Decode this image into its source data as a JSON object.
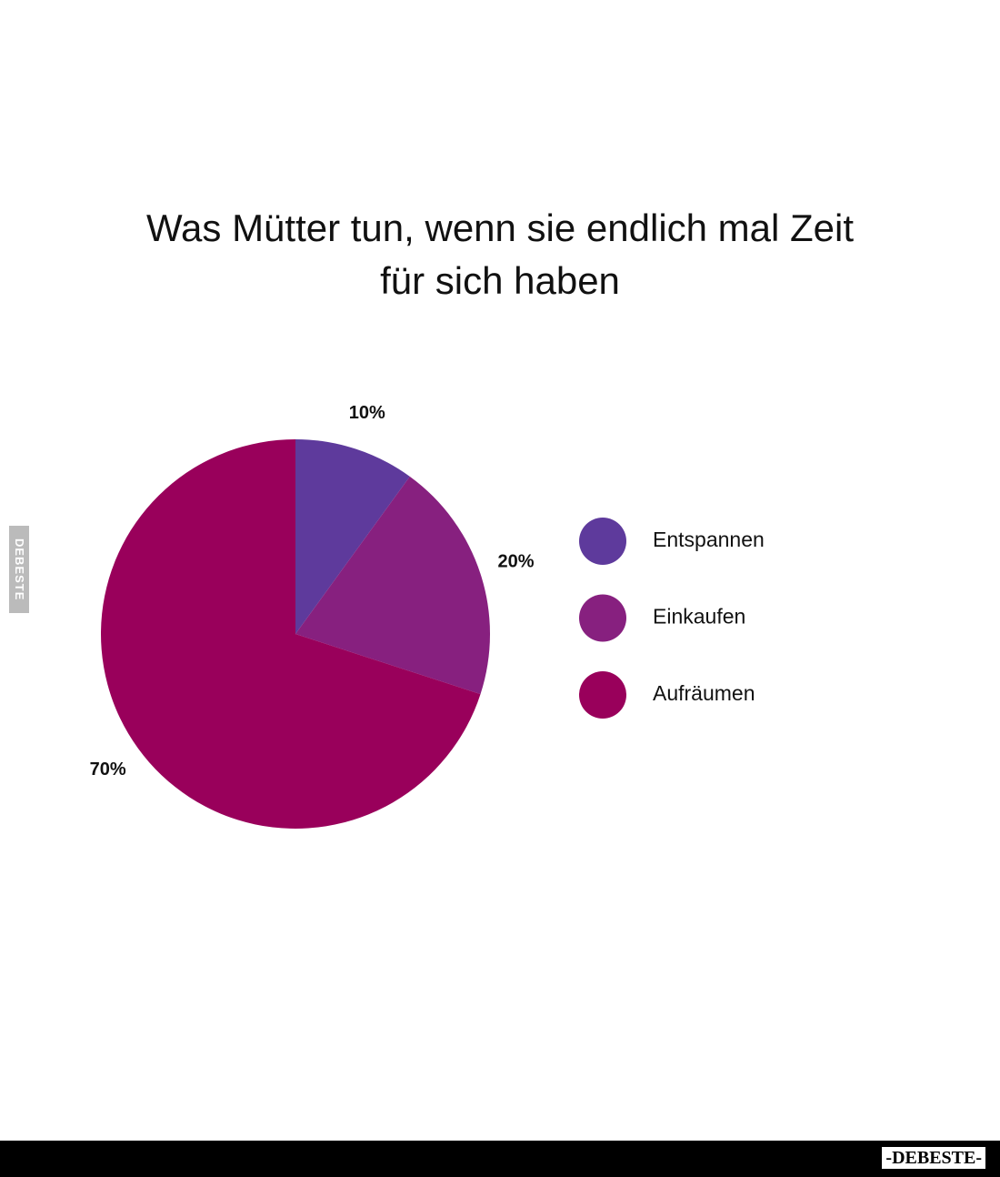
{
  "chart_data": {
    "type": "pie",
    "title": "Was Mütter tun, wenn sie endlich mal Zeit für sich haben",
    "categories": [
      "Entspannen",
      "Einkaufen",
      "Aufräumen"
    ],
    "values": [
      10,
      20,
      70
    ],
    "value_labels": [
      "10%",
      "20%",
      "70%"
    ],
    "colors": [
      "#5e3a9c",
      "#87207f",
      "#99005b"
    ],
    "legend": "right"
  },
  "watermark_side": "DEBESTE",
  "footer_logo": "-DEBESTE-"
}
